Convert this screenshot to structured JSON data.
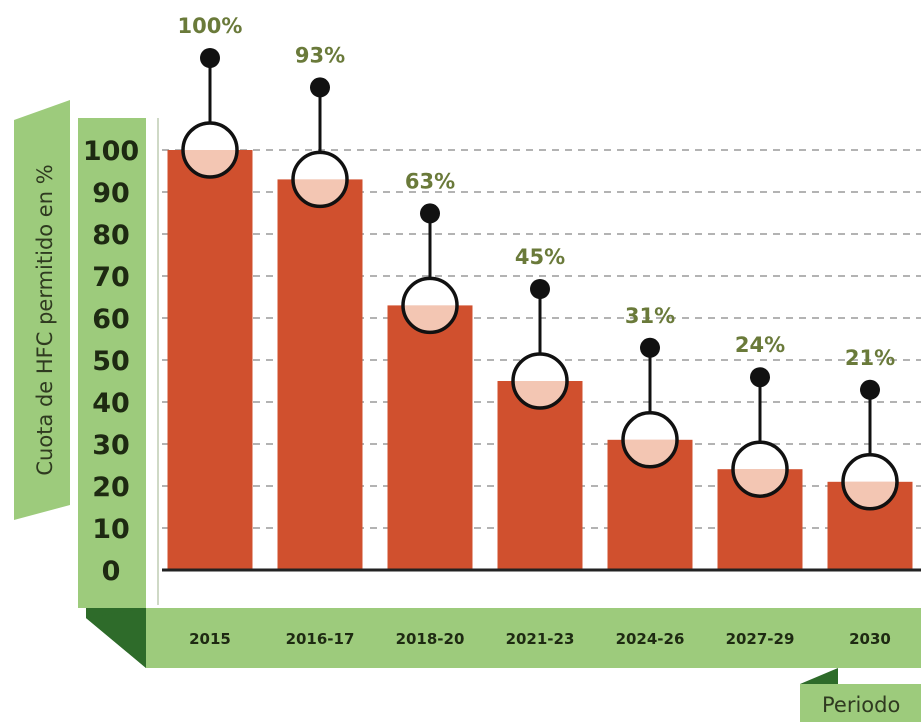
{
  "chart_data": {
    "type": "bar",
    "ylabel": "Cuota de HFC permitido en %",
    "xlabel": "Periodo",
    "ylim": [
      0,
      100
    ],
    "yticks": [
      0,
      10,
      20,
      30,
      40,
      50,
      60,
      70,
      80,
      90,
      100
    ],
    "grid": true,
    "categories": [
      "2015",
      "2016-17",
      "2018-20",
      "2021-23",
      "2024-26",
      "2027-29",
      "2030"
    ],
    "values": [
      100,
      93,
      63,
      45,
      31,
      24,
      21
    ],
    "value_labels": [
      "100%",
      "93%",
      "63%",
      "45%",
      "31%",
      "24%",
      "21%"
    ]
  },
  "colors": {
    "bar": "#d0502e",
    "bubble_fill": "#f3c6b3",
    "label_green": "#6a7a3a",
    "panel_light": "#9dcb7c",
    "panel_dark": "#2e6b2a",
    "grid": "#9a9a9a",
    "axis": "#222222",
    "pin": "#111111"
  }
}
